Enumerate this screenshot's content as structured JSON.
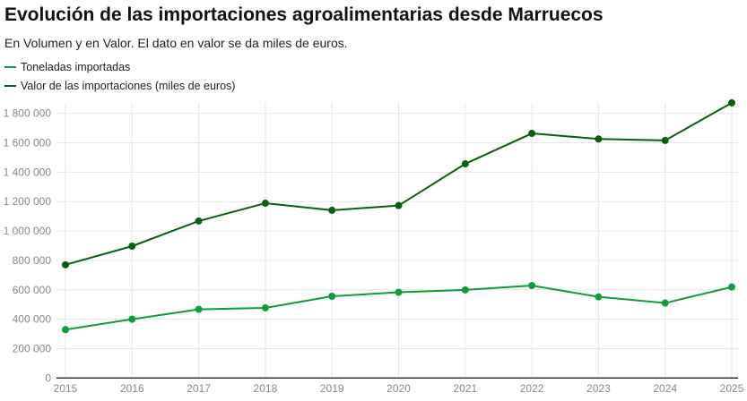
{
  "chart_data": {
    "type": "line",
    "title": "Evolución de las importaciones agroalimentarias desde Marruecos",
    "subtitle": "En Volumen y en Valor. El dato en valor se da miles de euros.",
    "x": [
      "2015",
      "2016",
      "2017",
      "2018",
      "2019",
      "2020",
      "2021",
      "2022",
      "2023",
      "2024",
      "2025"
    ],
    "series": [
      {
        "name": "Toneladas importadas",
        "color": "#0f9d3a",
        "values": [
          329000,
          400000,
          467000,
          477000,
          556000,
          583000,
          599000,
          629000,
          552000,
          510000,
          619000
        ]
      },
      {
        "name": "Valor de las importaciones (miles de euros)",
        "color": "#0b5e10",
        "values": [
          770000,
          897000,
          1068000,
          1189000,
          1141000,
          1173000,
          1457000,
          1664000,
          1626000,
          1616000,
          1872000
        ]
      }
    ],
    "ylim": [
      0,
      1800000
    ],
    "yticks": [
      0,
      200000,
      400000,
      600000,
      800000,
      1000000,
      1200000,
      1400000,
      1600000,
      1800000
    ],
    "ytick_labels": [
      "0",
      "200 000",
      "400 000",
      "600 000",
      "800 000",
      "1 000 000",
      "1 200 000",
      "1 400 000",
      "1 600 000",
      "1 800 000"
    ],
    "grid": true,
    "legend_position": "top-left",
    "xlabel": "",
    "ylabel": ""
  }
}
